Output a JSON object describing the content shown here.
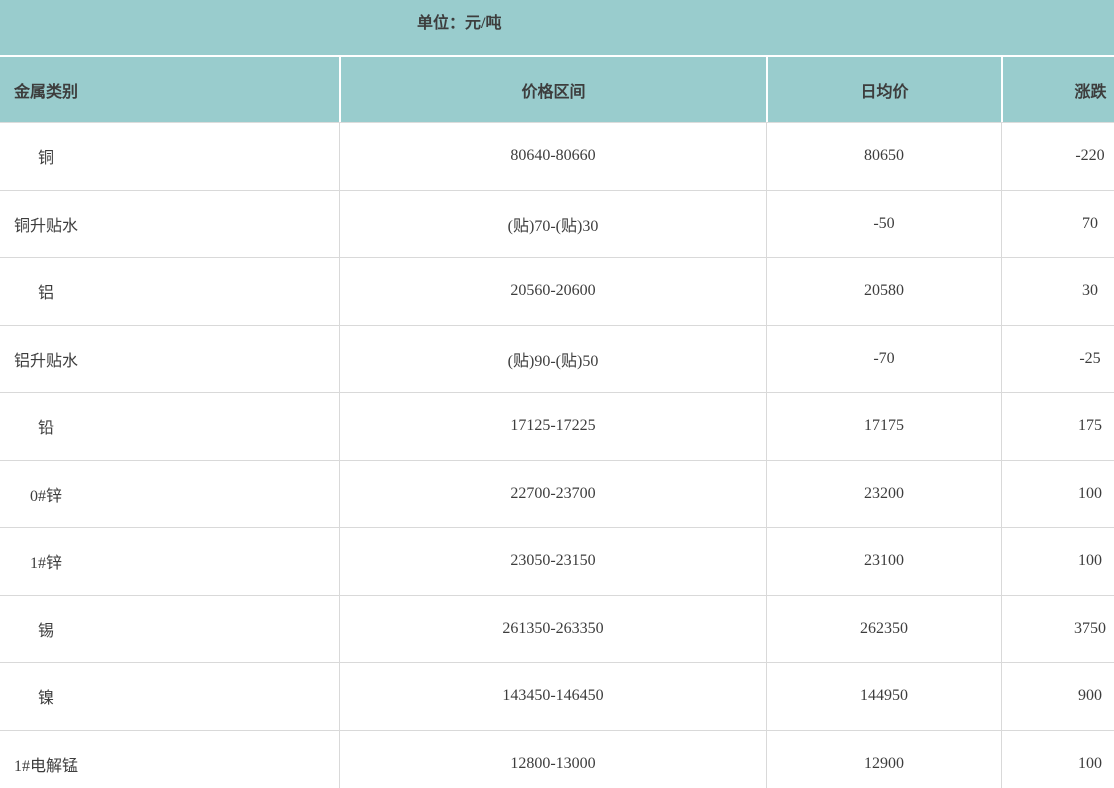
{
  "banner": {
    "unit_label": "单位：元/吨"
  },
  "chart_data": {
    "type": "table",
    "title": "单位：元/吨",
    "columns": [
      "金属类别",
      "价格区间",
      "日均价",
      "涨跌"
    ],
    "rows": [
      [
        "铜",
        "80640-80660",
        "80650",
        "-220"
      ],
      [
        "铜升贴水",
        "(贴)70-(贴)30",
        "-50",
        "70"
      ],
      [
        "铝",
        "20560-20600",
        "20580",
        "30"
      ],
      [
        "铝升贴水",
        "(贴)90-(贴)50",
        "-70",
        "-25"
      ],
      [
        "铅",
        "17125-17225",
        "17175",
        "175"
      ],
      [
        "0#锌",
        "22700-23700",
        "23200",
        "100"
      ],
      [
        "1#锌",
        "23050-23150",
        "23100",
        "100"
      ],
      [
        "锡",
        "261350-263350",
        "262350",
        "3750"
      ],
      [
        "镍",
        "143450-146450",
        "144950",
        "900"
      ],
      [
        "1#电解锰",
        "12800-13000",
        "12900",
        "100"
      ]
    ],
    "layout": {
      "header_bg": "#99cccd",
      "grid_line_color": "#d9d9d9",
      "text_color": "#3d3d3d",
      "right_column_clipped": true
    }
  }
}
